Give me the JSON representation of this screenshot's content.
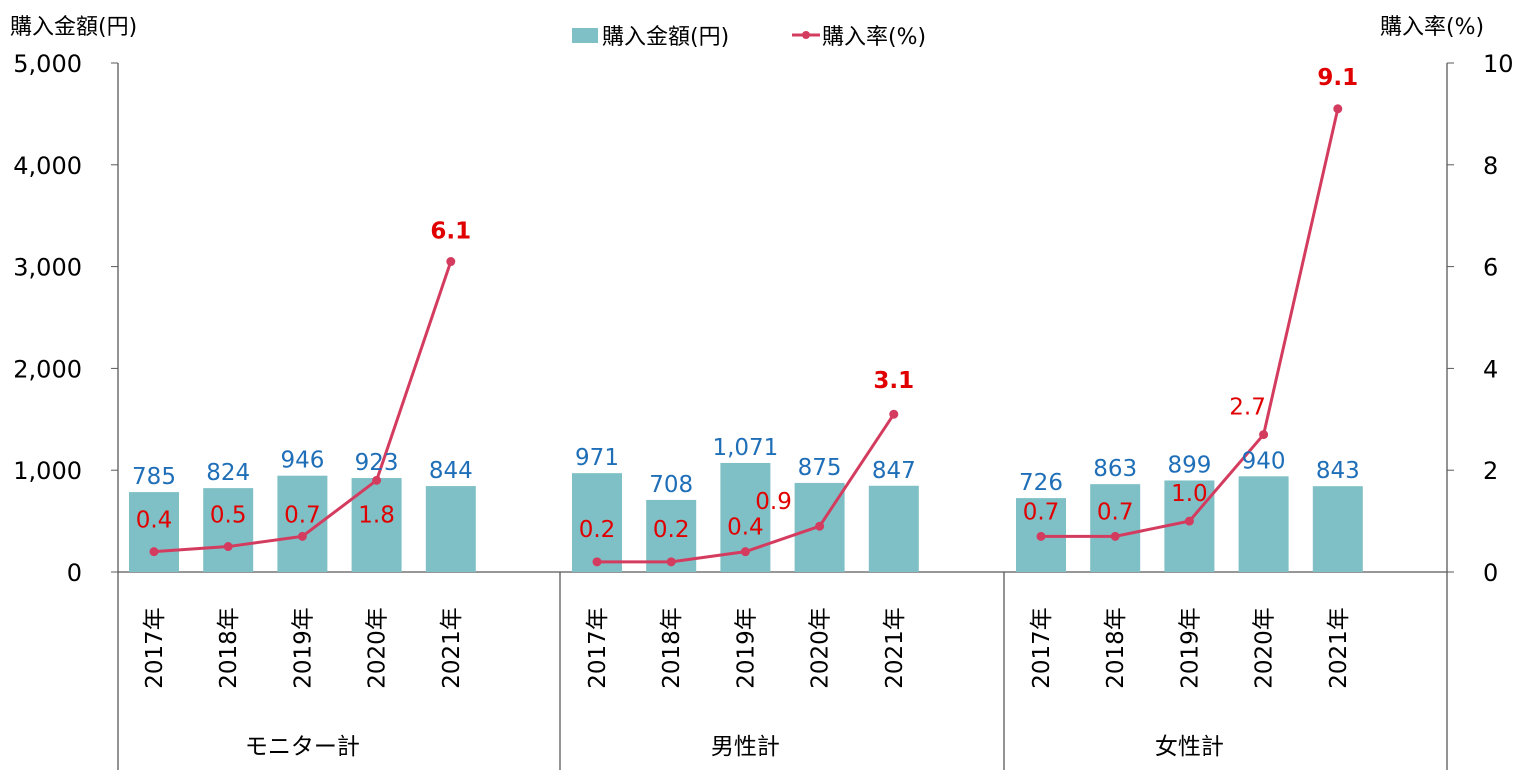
{
  "chart_data": {
    "type": "bar+line",
    "title": "",
    "ylabel_left": "購入金額(円)",
    "ylabel_right": "購入率(%)",
    "ylim_left": [
      0,
      5000
    ],
    "ylim_right": [
      0,
      10
    ],
    "yticks_left": [
      "0",
      "1,000",
      "2,000",
      "3,000",
      "4,000",
      "5,000"
    ],
    "yticks_right": [
      "0",
      "2",
      "4",
      "6",
      "8",
      "10"
    ],
    "legend": {
      "position": "top-center",
      "entries": [
        "購入金額(円)",
        "購入率(%)"
      ]
    },
    "colors": {
      "bar": "#7fc0c6",
      "line": "#d43c5f",
      "bar_label": "#1f6fb8",
      "rate_label": "#e00000"
    },
    "categories": [
      "2017年",
      "2018年",
      "2019年",
      "2020年",
      "2021年"
    ],
    "groups": [
      {
        "name": "モニター計",
        "amount": [
          785,
          824,
          946,
          923,
          844
        ],
        "amount_labels": [
          "785",
          "824",
          "946",
          "923",
          "844"
        ],
        "rate": [
          0.4,
          0.5,
          0.7,
          1.8,
          6.1
        ],
        "rate_labels": [
          "0.4",
          "0.5",
          "0.7",
          "1.8",
          "6.1"
        ]
      },
      {
        "name": "男性計",
        "amount": [
          971,
          708,
          1071,
          875,
          847
        ],
        "amount_labels": [
          "971",
          "708",
          "1,071",
          "875",
          "847"
        ],
        "rate": [
          0.2,
          0.2,
          0.4,
          0.9,
          3.1
        ],
        "rate_labels": [
          "0.2",
          "0.2",
          "0.4",
          "0.9",
          "3.1"
        ]
      },
      {
        "name": "女性計",
        "amount": [
          726,
          863,
          899,
          940,
          843
        ],
        "amount_labels": [
          "726",
          "863",
          "899",
          "940",
          "843"
        ],
        "rate": [
          0.7,
          0.7,
          1.0,
          2.7,
          9.1
        ],
        "rate_labels": [
          "0.7",
          "0.7",
          "1.0",
          "2.7",
          "9.1"
        ]
      }
    ]
  }
}
